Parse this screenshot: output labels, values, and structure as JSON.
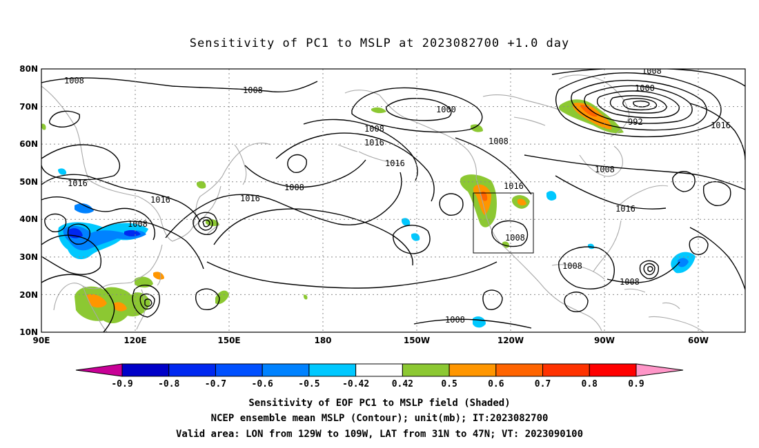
{
  "title": "Sensitivity of PC1 to MSLP at 2023082700 +1.0 day",
  "lat_labels": [
    "80N",
    "70N",
    "60N",
    "50N",
    "40N",
    "30N",
    "20N",
    "10N"
  ],
  "lon_labels": [
    "90E",
    "120E",
    "150E",
    "180",
    "150W",
    "120W",
    "90W",
    "60W"
  ],
  "contour_labels": {
    "c1008a": "1008",
    "c1008b": "1008",
    "c1008c": "1008",
    "c1008d": "1008",
    "c1008e": "1008",
    "c1008f": "1008",
    "c1008g": "1008",
    "c1008h": "1008",
    "c1008i": "1008",
    "c1008j": "1008",
    "c1008k": "1008",
    "c1008l": "1008",
    "c1016a": "1016",
    "c1016b": "1016",
    "c1016c": "1016",
    "c1016d": "1016",
    "c1016e": "1016",
    "c1016f": "1016",
    "c1016g": "1016",
    "c1016h": "1016",
    "c1000a": "1000",
    "c1000b": "1000",
    "c992": "992"
  },
  "colorbar": {
    "labels": [
      "-0.9",
      "-0.8",
      "-0.7",
      "-0.6",
      "-0.5",
      "-0.42",
      "0.42",
      "0.5",
      "0.6",
      "0.7",
      "0.8",
      "0.9"
    ],
    "colors": [
      "#0000c8",
      "#0028f0",
      "#0050ff",
      "#0082ff",
      "#00c8ff",
      "#ffffff",
      "#8cc832",
      "#ff9600",
      "#ff6400",
      "#ff3200",
      "#ff0000"
    ],
    "low_end_color": "#c80096",
    "high_end_color": "#ff96c8"
  },
  "captions": {
    "line1": "Sensitivity of EOF PC1 to MSLP field (Shaded)",
    "line2": "NCEP ensemble mean MSLP (Contour); unit(mb); IT:2023082700",
    "line3": "Valid area: LON from 129W to 109W, LAT from 31N to 47N; VT: 2023090100"
  },
  "valid_area": {
    "lon_min": -129,
    "lon_max": -109,
    "lat_min": 31,
    "lat_max": 47
  }
}
